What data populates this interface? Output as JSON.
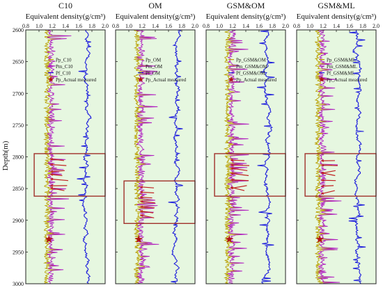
{
  "chart_data": [
    {
      "type": "line",
      "title": "C10",
      "xlabel": "Equivalent density(g/cm³)",
      "ylabel": "Depth(m)",
      "xlim": [
        0.8,
        2.0
      ],
      "ylim": [
        2600,
        3000
      ],
      "y_inverted": true,
      "xticks": [
        "0.8",
        "1.0",
        "1.2",
        "1.4",
        "1.6",
        "1.8",
        "2.0"
      ],
      "yticks": [
        "2600",
        "2650",
        "2700",
        "2750",
        "2800",
        "2850",
        "2900",
        "2950",
        "3000"
      ],
      "legend": [
        "Pp_C10",
        "Pm_C10",
        "Pf_C10",
        "Pp_Actual measured"
      ],
      "legend_position": "upper-center",
      "series": [
        {
          "name": "Pp_C10",
          "color": "#b8a000",
          "approx_mean": 1.12
        },
        {
          "name": "Pm_C10",
          "color": "#b020c0",
          "approx_mean": 1.18
        },
        {
          "name": "Pf_C10",
          "color": "#1f1fdc",
          "approx_mean": 1.72
        },
        {
          "name": "Pp_Actual measured",
          "color": "#b01515",
          "marker": "star",
          "points": [
            {
              "x": 1.15,
              "y": 2930
            }
          ]
        }
      ],
      "highlight_box": {
        "depth_range": [
          2795,
          2862
        ],
        "x_range": [
          0.98,
          2.0
        ]
      }
    },
    {
      "type": "line",
      "title": "OM",
      "xlabel": "Equivalent density(g/cm³)",
      "xlim": [
        0.8,
        2.0
      ],
      "ylim": [
        2600,
        3000
      ],
      "y_inverted": true,
      "xticks": [
        "0.8",
        "1.0",
        "1.2",
        "1.4",
        "1.6",
        "1.8",
        "2.0"
      ],
      "legend": [
        "Pp_OM",
        "Pm_OM",
        "Pf_OM",
        "Pp_Actual measured"
      ],
      "legend_position": "upper-center",
      "series": [
        {
          "name": "Pp_OM",
          "color": "#b8a000",
          "approx_mean": 1.12
        },
        {
          "name": "Pm_OM",
          "color": "#b020c0",
          "approx_mean": 1.18
        },
        {
          "name": "Pf_OM",
          "color": "#1f1fdc",
          "approx_mean": 1.72
        },
        {
          "name": "Pp_Actual measured",
          "color": "#b01515",
          "marker": "star",
          "points": [
            {
              "x": 1.15,
              "y": 2930
            }
          ]
        }
      ],
      "highlight_box": {
        "depth_range": [
          2838,
          2905
        ],
        "x_range": [
          0.98,
          2.0
        ]
      }
    },
    {
      "type": "line",
      "title": "GSM&OM",
      "xlabel": "Equivalent density(g/cm³)",
      "xlim": [
        0.8,
        2.0
      ],
      "ylim": [
        2600,
        3000
      ],
      "y_inverted": true,
      "xticks": [
        "0.8",
        "1.0",
        "1.2",
        "1.4",
        "1.6",
        "1.8",
        "2.0"
      ],
      "legend": [
        "Pp_GSM&OM",
        "Pm_GSM&OM",
        "Pf_GSM&OM",
        "Pp_Actual measured"
      ],
      "legend_position": "upper-center",
      "series": [
        {
          "name": "Pp_GSM&OM",
          "color": "#b8a000",
          "approx_mean": 1.12
        },
        {
          "name": "Pm_GSM&OM",
          "color": "#b020c0",
          "approx_mean": 1.18
        },
        {
          "name": "Pf_GSM&OM",
          "color": "#1f1fdc",
          "approx_mean": 1.72
        },
        {
          "name": "Pp_Actual measured",
          "color": "#b01515",
          "marker": "star",
          "points": [
            {
              "x": 1.15,
              "y": 2930
            }
          ]
        }
      ],
      "highlight_box": {
        "depth_range": [
          2795,
          2862
        ],
        "x_range": [
          0.98,
          2.0
        ]
      }
    },
    {
      "type": "line",
      "title": "GSM&ML",
      "xlabel": "Equivalent density(g/cm³)",
      "xlim": [
        0.8,
        2.0
      ],
      "ylim": [
        2600,
        3000
      ],
      "y_inverted": true,
      "xticks": [
        "0.8",
        "1.0",
        "1.2",
        "1.4",
        "1.6",
        "1.8",
        "2.0"
      ],
      "legend": [
        "Pp_GSM&ML",
        "Pm_GSM&ML",
        "Pf_GSM&ML",
        "Pp_Actual measured"
      ],
      "legend_position": "upper-center",
      "series": [
        {
          "name": "Pp_GSM&ML",
          "color": "#b8a000",
          "approx_mean": 1.12
        },
        {
          "name": "Pm_GSM&ML",
          "color": "#b020c0",
          "approx_mean": 1.18
        },
        {
          "name": "Pf_GSM&ML",
          "color": "#1f1fdc",
          "approx_mean": 1.72
        },
        {
          "name": "Pp_Actual measured",
          "color": "#b01515",
          "marker": "star",
          "points": [
            {
              "x": 1.15,
              "y": 2930
            }
          ]
        }
      ],
      "highlight_box": {
        "depth_range": [
          2795,
          2862
        ],
        "x_range": [
          0.98,
          2.0
        ]
      }
    }
  ],
  "colors": {
    "panel_background": "#e6f7e0",
    "frame": "#222222",
    "highlight_box": "#a0302a",
    "arrow": "#c02020"
  }
}
